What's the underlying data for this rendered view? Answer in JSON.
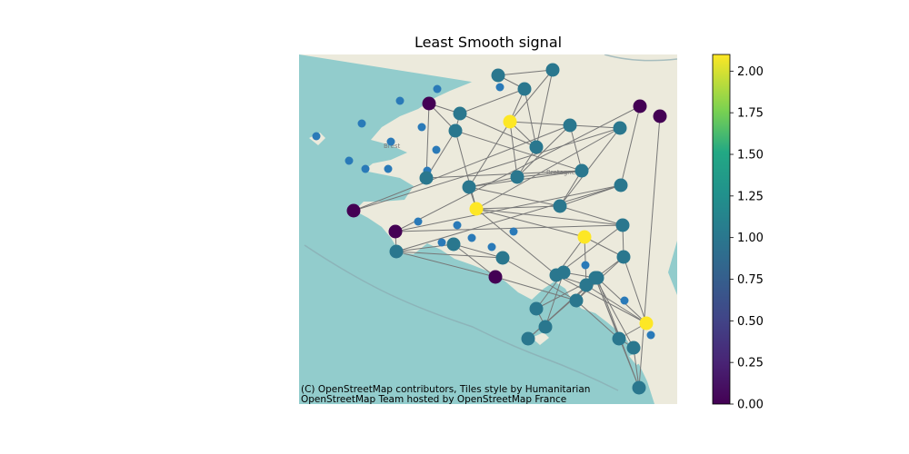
{
  "chart_data": {
    "type": "scatter",
    "title": "Least Smooth signal",
    "attribution": [
      "(C) OpenStreetMap contributors, Tiles style by Humanitarian",
      "OpenStreetMap Team hosted by OpenStreetMap France"
    ],
    "map_labels": {
      "city": "Brest",
      "region": "Bretagne"
    },
    "colorbar": {
      "colormap": "viridis",
      "range": [
        0,
        2.1
      ],
      "ticks": [
        "0.00",
        "0.25",
        "0.50",
        "0.75",
        "1.00",
        "1.25",
        "1.50",
        "1.75",
        "2.00"
      ],
      "tick_values": [
        0,
        0.25,
        0.5,
        0.75,
        1.0,
        1.25,
        1.5,
        1.75,
        2.0
      ]
    },
    "colors": {
      "sea": "#92cccc",
      "land": "#eceadc",
      "edge": "#777777",
      "small_node": "#2a7ab8"
    },
    "nodes": [
      {
        "id": 0,
        "value": 1.0
      },
      {
        "id": 1,
        "value": 1.0
      },
      {
        "id": 2,
        "value": 0.0
      },
      {
        "id": 3,
        "value": 1.0
      },
      {
        "id": 4,
        "value": 1.0
      },
      {
        "id": 5,
        "value": 1.0
      },
      {
        "id": 6,
        "value": 2.1
      },
      {
        "id": 7,
        "value": 1.0
      },
      {
        "id": 8,
        "value": 1.0
      },
      {
        "id": 9,
        "value": 0.0
      },
      {
        "id": 10,
        "value": 1.0
      },
      {
        "id": 11,
        "value": 1.0
      },
      {
        "id": 12,
        "value": 2.1
      },
      {
        "id": 13,
        "value": 1.0
      },
      {
        "id": 14,
        "value": 1.0
      },
      {
        "id": 15,
        "value": 1.0
      },
      {
        "id": 16,
        "value": 0.0
      },
      {
        "id": 17,
        "value": 1.0
      },
      {
        "id": 18,
        "value": 1.0
      },
      {
        "id": 19,
        "value": 1.0
      },
      {
        "id": 20,
        "value": 0.0
      },
      {
        "id": 21,
        "value": 1.0
      },
      {
        "id": 22,
        "value": 1.0
      },
      {
        "id": 23,
        "value": 1.0
      },
      {
        "id": 24,
        "value": 0.0
      },
      {
        "id": 25,
        "value": 2.1
      },
      {
        "id": 26,
        "value": 1.0
      },
      {
        "id": 27,
        "value": 1.0
      },
      {
        "id": 28,
        "value": 1.0
      },
      {
        "id": 29,
        "value": 1.0
      },
      {
        "id": 30,
        "value": 1.0
      },
      {
        "id": 31,
        "value": 2.1
      },
      {
        "id": 32,
        "value": 1.0
      },
      {
        "id": 33,
        "value": 1.0
      },
      {
        "id": 34,
        "value": 1.0
      },
      {
        "id": 35,
        "value": 1.0
      },
      {
        "id": 36,
        "value": 0.0
      },
      {
        "id": 37,
        "value": 1.0
      },
      {
        "id": 38,
        "value": 1.0
      },
      {
        "id": 39,
        "value": 1.0
      },
      {
        "id": 40,
        "value": 1.0
      }
    ],
    "edges": [
      [
        0,
        3
      ],
      [
        0,
        1
      ],
      [
        1,
        4
      ],
      [
        2,
        5
      ],
      [
        2,
        4
      ],
      [
        2,
        8
      ],
      [
        4,
        5
      ],
      [
        4,
        7
      ],
      [
        3,
        7
      ],
      [
        3,
        6
      ],
      [
        1,
        6
      ],
      [
        1,
        7
      ],
      [
        7,
        6
      ],
      [
        7,
        10
      ],
      [
        6,
        10
      ],
      [
        6,
        11
      ],
      [
        6,
        13
      ],
      [
        10,
        11
      ],
      [
        10,
        13
      ],
      [
        11,
        12
      ],
      [
        11,
        14
      ],
      [
        13,
        14
      ],
      [
        10,
        14
      ],
      [
        13,
        9
      ],
      [
        13,
        15
      ],
      [
        8,
        5
      ],
      [
        8,
        14
      ],
      [
        5,
        12
      ],
      [
        5,
        14
      ],
      [
        14,
        17
      ],
      [
        15,
        17
      ],
      [
        15,
        12
      ],
      [
        16,
        18
      ],
      [
        16,
        20
      ],
      [
        18,
        20
      ],
      [
        18,
        21
      ],
      [
        20,
        19
      ],
      [
        21,
        22
      ],
      [
        21,
        23
      ],
      [
        22,
        23
      ],
      [
        21,
        24
      ],
      [
        22,
        24
      ],
      [
        12,
        17
      ],
      [
        12,
        19
      ],
      [
        12,
        25
      ],
      [
        12,
        27
      ],
      [
        19,
        27
      ],
      [
        17,
        18
      ],
      [
        17,
        19
      ],
      [
        19,
        26
      ],
      [
        25,
        26
      ],
      [
        25,
        27
      ],
      [
        25,
        28
      ],
      [
        27,
        28
      ],
      [
        26,
        30
      ],
      [
        27,
        31
      ],
      [
        26,
        31
      ],
      [
        31,
        32
      ],
      [
        30,
        32
      ],
      [
        29,
        31
      ],
      [
        32,
        33
      ],
      [
        29,
        34
      ],
      [
        29,
        35
      ],
      [
        33,
        35
      ],
      [
        35,
        36
      ],
      [
        34,
        37
      ],
      [
        33,
        37
      ],
      [
        35,
        37
      ],
      [
        37,
        38
      ],
      [
        38,
        39
      ],
      [
        37,
        39
      ],
      [
        39,
        40
      ],
      [
        38,
        40
      ],
      [
        9,
        15
      ],
      [
        11,
        17
      ],
      [
        28,
        31
      ],
      [
        30,
        29
      ],
      [
        32,
        37
      ],
      [
        26,
        28
      ],
      [
        23,
        30
      ],
      [
        24,
        30
      ],
      [
        20,
        21
      ]
    ],
    "small_nodes": 21
  }
}
